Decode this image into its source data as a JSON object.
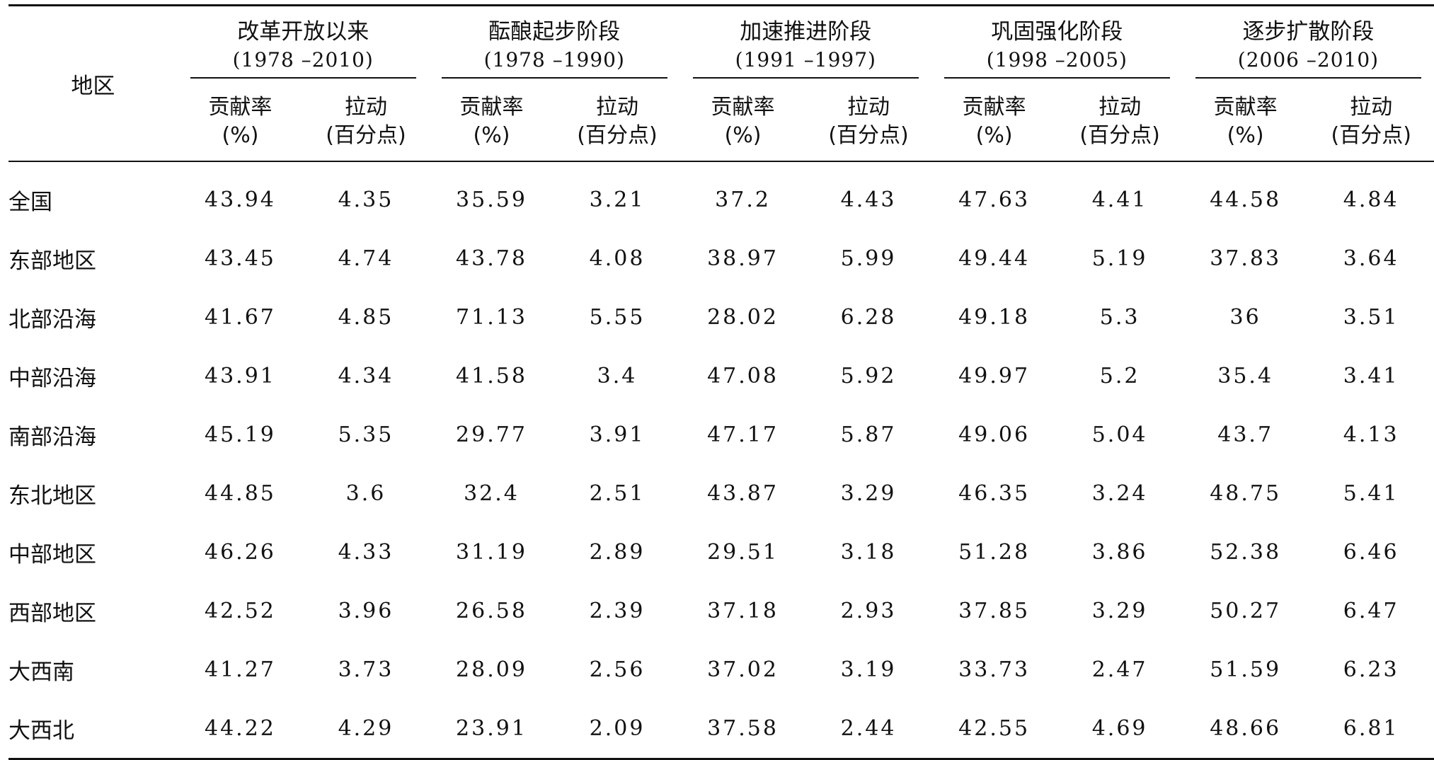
{
  "table": {
    "region_header": "地区",
    "groups": [
      {
        "title": "改革开放以来",
        "range": "(1978 –2010)"
      },
      {
        "title": "酝酿起步阶段",
        "range": "(1978 –1990)"
      },
      {
        "title": "加速推进阶段",
        "range": "(1991 –1997)"
      },
      {
        "title": "巩固强化阶段",
        "range": "(1998 –2005)"
      },
      {
        "title": "逐步扩散阶段",
        "range": "(2006 –2010)"
      }
    ],
    "sub_headers": [
      {
        "line1": "贡献率",
        "line2": "(%)"
      },
      {
        "line1": "拉动",
        "line2": "(百分点)"
      }
    ],
    "rows": [
      {
        "region": "全国",
        "values": [
          "43.94",
          "4.35",
          "35.59",
          "3.21",
          "37.2",
          "4.43",
          "47.63",
          "4.41",
          "44.58",
          "4.84"
        ]
      },
      {
        "region": "东部地区",
        "values": [
          "43.45",
          "4.74",
          "43.78",
          "4.08",
          "38.97",
          "5.99",
          "49.44",
          "5.19",
          "37.83",
          "3.64"
        ]
      },
      {
        "region": "北部沿海",
        "values": [
          "41.67",
          "4.85",
          "71.13",
          "5.55",
          "28.02",
          "6.28",
          "49.18",
          "5.3",
          "36",
          "3.51"
        ]
      },
      {
        "region": "中部沿海",
        "values": [
          "43.91",
          "4.34",
          "41.58",
          "3.4",
          "47.08",
          "5.92",
          "49.97",
          "5.2",
          "35.4",
          "3.41"
        ]
      },
      {
        "region": "南部沿海",
        "values": [
          "45.19",
          "5.35",
          "29.77",
          "3.91",
          "47.17",
          "5.87",
          "49.06",
          "5.04",
          "43.7",
          "4.13"
        ]
      },
      {
        "region": "东北地区",
        "values": [
          "44.85",
          "3.6",
          "32.4",
          "2.51",
          "43.87",
          "3.29",
          "46.35",
          "3.24",
          "48.75",
          "5.41"
        ]
      },
      {
        "region": "中部地区",
        "values": [
          "46.26",
          "4.33",
          "31.19",
          "2.89",
          "29.51",
          "3.18",
          "51.28",
          "3.86",
          "52.38",
          "6.46"
        ]
      },
      {
        "region": "西部地区",
        "values": [
          "42.52",
          "3.96",
          "26.58",
          "2.39",
          "37.18",
          "2.93",
          "37.85",
          "3.29",
          "50.27",
          "6.47"
        ]
      },
      {
        "region": "大西南",
        "values": [
          "41.27",
          "3.73",
          "28.09",
          "2.56",
          "37.02",
          "3.19",
          "33.73",
          "2.47",
          "51.59",
          "6.23"
        ]
      },
      {
        "region": "大西北",
        "values": [
          "44.22",
          "4.29",
          "23.91",
          "2.09",
          "37.58",
          "2.44",
          "42.55",
          "4.69",
          "48.66",
          "6.81"
        ]
      }
    ]
  }
}
